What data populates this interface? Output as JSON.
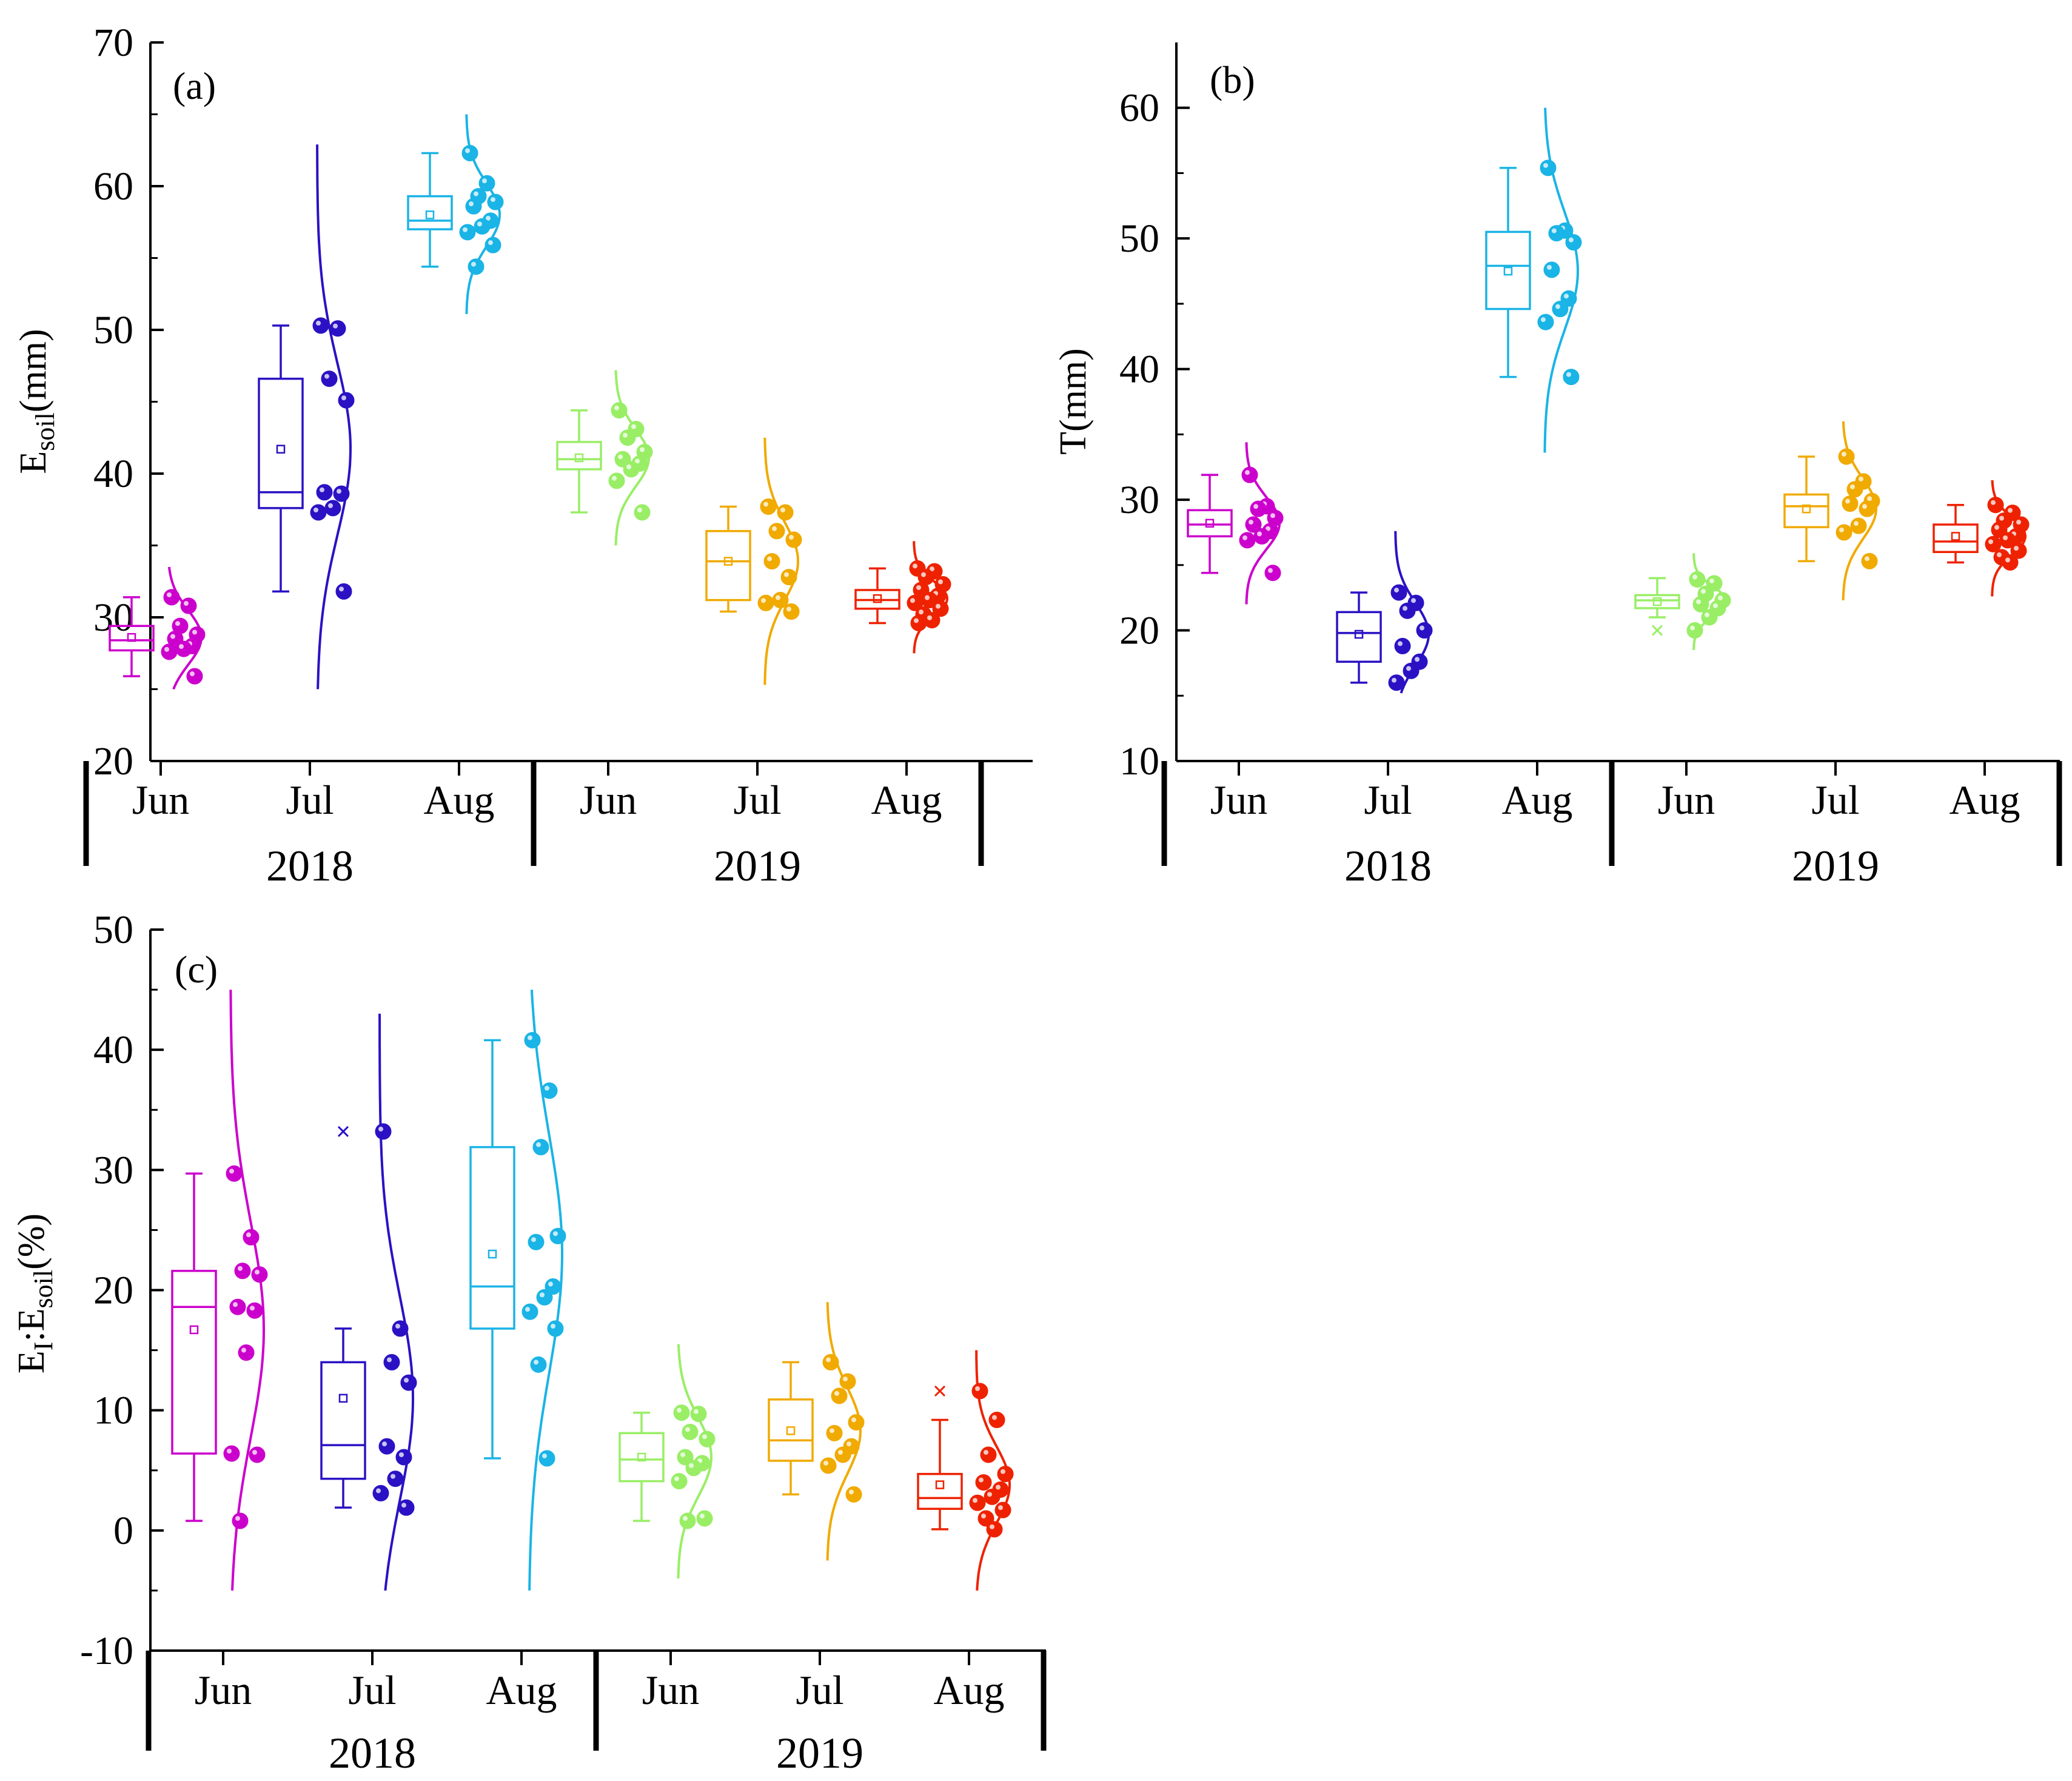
{
  "chart_data": [
    {
      "type": "box-violin",
      "panel_label": "(a)",
      "ylabel": {
        "main": "E",
        "sub": "soil",
        "rest": "(mm)"
      },
      "ylim": [
        20,
        70
      ],
      "yticks": [
        20,
        30,
        40,
        50,
        60,
        70
      ],
      "ytick_labels": [
        "20",
        "30",
        "40",
        "50",
        "60",
        "70"
      ],
      "groups": [
        {
          "month": "Jun",
          "year": "2018",
          "color": "#cc00cc",
          "box": {
            "min": 25.9,
            "q1": 27.7,
            "median": 28.4,
            "q3": 29.4,
            "max": 31.4,
            "mean": 28.6
          },
          "points": [
            31.4,
            30.8,
            29.4,
            28.8,
            28.5,
            28.0,
            27.8,
            27.6,
            25.9
          ],
          "curve": {
            "mu": 28.6,
            "sigma": 1.9,
            "lo": 25.0,
            "hi": 33.5
          }
        },
        {
          "month": "Jul",
          "year": "2018",
          "color": "#2a12c4",
          "box": {
            "min": 31.8,
            "q1": 37.6,
            "median": 38.7,
            "q3": 46.6,
            "max": 50.3,
            "mean": 41.7
          },
          "points": [
            50.3,
            50.1,
            46.6,
            45.1,
            38.7,
            38.6,
            37.6,
            37.3,
            31.8
          ],
          "curve": {
            "mu": 41.7,
            "sigma": 6.0,
            "lo": 25.0,
            "hi": 62.9
          }
        },
        {
          "month": "Aug",
          "year": "2018",
          "color": "#1ab4e6",
          "box": {
            "min": 54.4,
            "q1": 57.0,
            "median": 57.6,
            "q3": 59.3,
            "max": 62.3,
            "mean": 58.0
          },
          "points": [
            62.3,
            60.2,
            59.3,
            58.9,
            58.6,
            57.6,
            57.2,
            56.8,
            55.9,
            54.4
          ],
          "curve": {
            "mu": 58.0,
            "sigma": 2.2,
            "lo": 51.1,
            "hi": 65.0
          }
        },
        {
          "month": "Jun",
          "year": "2019",
          "color": "#99ee66",
          "box": {
            "min": 37.3,
            "q1": 40.3,
            "median": 41.0,
            "q3": 42.2,
            "max": 44.4,
            "mean": 41.1
          },
          "points": [
            44.4,
            43.1,
            42.5,
            41.5,
            41.0,
            40.7,
            40.3,
            39.5,
            37.3
          ],
          "curve": {
            "mu": 41.1,
            "sigma": 2.0,
            "lo": 35.0,
            "hi": 47.2
          }
        },
        {
          "month": "Jul",
          "year": "2019",
          "color": "#f0aa00",
          "box": {
            "min": 30.4,
            "q1": 31.2,
            "median": 33.9,
            "q3": 36.0,
            "max": 37.7,
            "mean": 33.9
          },
          "points": [
            37.7,
            37.3,
            36.0,
            35.4,
            33.9,
            32.8,
            31.2,
            31.0,
            30.4
          ],
          "curve": {
            "mu": 33.9,
            "sigma": 2.7,
            "lo": 25.3,
            "hi": 42.5
          }
        },
        {
          "month": "Aug",
          "year": "2019",
          "color": "#ee2200",
          "box": {
            "min": 29.6,
            "q1": 30.6,
            "median": 31.2,
            "q3": 31.9,
            "max": 33.4,
            "mean": 31.3
          },
          "points": [
            33.4,
            33.2,
            32.8,
            32.3,
            31.9,
            31.5,
            31.2,
            31.0,
            30.6,
            30.2,
            29.8,
            29.6
          ],
          "curve": {
            "mu": 31.3,
            "sigma": 1.2,
            "lo": 27.5,
            "hi": 35.3
          }
        }
      ]
    },
    {
      "type": "box-violin",
      "panel_label": "(b)",
      "ylabel": {
        "main": "T(mm)",
        "sub": "",
        "rest": ""
      },
      "ylim": [
        10,
        65
      ],
      "yticks": [
        10,
        20,
        30,
        40,
        50,
        60
      ],
      "ytick_labels": [
        "10",
        "20",
        "30",
        "40",
        "50",
        "60"
      ],
      "groups": [
        {
          "month": "Jun",
          "year": "2018",
          "color": "#cc00cc",
          "box": {
            "min": 24.4,
            "q1": 27.2,
            "median": 28.1,
            "q3": 29.2,
            "max": 31.9,
            "mean": 28.2
          },
          "points": [
            31.9,
            29.5,
            29.3,
            28.6,
            28.1,
            27.6,
            27.2,
            26.9,
            24.4
          ],
          "curve": {
            "mu": 28.2,
            "sigma": 2.0,
            "lo": 22.0,
            "hi": 34.4
          }
        },
        {
          "month": "Jul",
          "year": "2018",
          "color": "#2a12c4",
          "box": {
            "min": 16.0,
            "q1": 17.6,
            "median": 19.8,
            "q3": 21.4,
            "max": 22.9,
            "mean": 19.7
          },
          "points": [
            22.9,
            22.1,
            21.5,
            20.0,
            18.8,
            17.6,
            16.9,
            16.0
          ],
          "curve": {
            "mu": 19.7,
            "sigma": 2.4,
            "lo": 15.2,
            "hi": 27.6
          }
        },
        {
          "month": "Aug",
          "year": "2018",
          "color": "#1ab4e6",
          "box": {
            "min": 39.4,
            "q1": 44.6,
            "median": 47.9,
            "q3": 50.5,
            "max": 55.4,
            "mean": 47.5
          },
          "points": [
            55.4,
            50.6,
            50.4,
            49.7,
            47.6,
            45.4,
            44.6,
            43.6,
            39.4
          ],
          "curve": {
            "mu": 47.5,
            "sigma": 4.5,
            "lo": 33.6,
            "hi": 60.0
          }
        },
        {
          "month": "Jun",
          "year": "2019",
          "color": "#99ee66",
          "box": {
            "min": 21.0,
            "q1": 21.7,
            "median": 22.3,
            "q3": 22.7,
            "max": 24.0,
            "mean": 22.2
          },
          "points": [
            23.9,
            23.6,
            22.8,
            22.3,
            22.0,
            21.7,
            21.0,
            20.0
          ],
          "curve": {
            "mu": 22.2,
            "sigma": 1.1,
            "lo": 18.5,
            "hi": 25.9
          },
          "outliers": [
            20.0
          ]
        },
        {
          "month": "Jul",
          "year": "2019",
          "color": "#f0aa00",
          "box": {
            "min": 25.3,
            "q1": 27.9,
            "median": 29.5,
            "q3": 30.4,
            "max": 33.3,
            "mean": 29.3
          },
          "points": [
            33.3,
            31.4,
            30.8,
            29.9,
            29.7,
            29.3,
            28.0,
            27.5,
            25.3
          ],
          "curve": {
            "mu": 29.3,
            "sigma": 2.3,
            "lo": 22.3,
            "hi": 36.0
          }
        },
        {
          "month": "Aug",
          "year": "2019",
          "color": "#ee2200",
          "box": {
            "min": 25.2,
            "q1": 26.0,
            "median": 26.8,
            "q3": 28.1,
            "max": 29.6,
            "mean": 27.2
          },
          "points": [
            29.6,
            29.0,
            28.4,
            28.1,
            27.7,
            27.2,
            26.9,
            26.6,
            26.1,
            25.6,
            25.2
          ],
          "curve": {
            "mu": 27.2,
            "sigma": 1.4,
            "lo": 22.6,
            "hi": 31.5
          }
        }
      ]
    },
    {
      "type": "box-violin",
      "panel_label": "(c)",
      "ylabel": {
        "main": "E",
        "sub1": "I",
        "mid": ":E",
        "sub": "soil",
        "rest": "(%)"
      },
      "ylim": [
        -10,
        50
      ],
      "yticks": [
        -10,
        0,
        10,
        20,
        30,
        40,
        50
      ],
      "ytick_labels": [
        "-10",
        "0",
        "10",
        "20",
        "30",
        "40",
        "50"
      ],
      "groups": [
        {
          "month": "Jun",
          "year": "2018",
          "color": "#cc00cc",
          "box": {
            "min": 0.8,
            "q1": 6.4,
            "median": 18.6,
            "q3": 21.6,
            "max": 29.7,
            "mean": 16.7
          },
          "points": [
            29.7,
            24.4,
            21.6,
            21.3,
            18.6,
            18.3,
            14.8,
            6.4,
            6.3,
            0.8
          ],
          "curve": {
            "mu": 16.7,
            "sigma": 9.0,
            "lo": -5.0,
            "hi": 45.0
          }
        },
        {
          "month": "Jul",
          "year": "2018",
          "color": "#2a12c4",
          "box": {
            "min": 1.9,
            "q1": 4.3,
            "median": 7.1,
            "q3": 14.0,
            "max": 16.8,
            "mean": 11.0
          },
          "points": [
            33.2,
            16.8,
            14.0,
            12.3,
            7.0,
            6.1,
            4.3,
            3.1,
            1.9
          ],
          "curve": {
            "mu": 11.0,
            "sigma": 8.5,
            "lo": -5.0,
            "hi": 43.0
          },
          "outliers": [
            33.2
          ]
        },
        {
          "month": "Aug",
          "year": "2018",
          "color": "#1ab4e6",
          "box": {
            "min": 6.0,
            "q1": 16.8,
            "median": 20.3,
            "q3": 31.9,
            "max": 40.8,
            "mean": 23.0
          },
          "points": [
            40.8,
            36.6,
            31.9,
            24.5,
            24.0,
            20.3,
            19.4,
            18.2,
            16.8,
            13.8,
            6.0
          ],
          "curve": {
            "mu": 23.0,
            "sigma": 10.0,
            "lo": -5.0,
            "hi": 45.0
          }
        },
        {
          "month": "Jun",
          "year": "2019",
          "color": "#99ee66",
          "box": {
            "min": 0.8,
            "q1": 4.1,
            "median": 5.9,
            "q3": 8.1,
            "max": 9.8,
            "mean": 6.1
          },
          "points": [
            9.8,
            9.7,
            8.2,
            7.6,
            6.1,
            5.6,
            5.2,
            4.1,
            1.0,
            0.8
          ],
          "curve": {
            "mu": 6.1,
            "sigma": 3.3,
            "lo": -4.0,
            "hi": 15.5
          }
        },
        {
          "month": "Jul",
          "year": "2019",
          "color": "#f0aa00",
          "box": {
            "min": 3.0,
            "q1": 5.8,
            "median": 7.5,
            "q3": 10.9,
            "max": 14.0,
            "mean": 8.3
          },
          "points": [
            14.0,
            12.4,
            11.2,
            9.0,
            8.1,
            7.0,
            6.3,
            5.4,
            3.0
          ],
          "curve": {
            "mu": 8.3,
            "sigma": 3.6,
            "lo": -2.5,
            "hi": 19.0
          }
        },
        {
          "month": "Aug",
          "year": "2019",
          "color": "#ee2200",
          "box": {
            "min": 0.1,
            "q1": 1.8,
            "median": 2.7,
            "q3": 4.7,
            "max": 9.2,
            "mean": 3.8
          },
          "points": [
            11.6,
            9.2,
            6.3,
            4.7,
            4.0,
            3.4,
            2.8,
            2.3,
            1.7,
            1.0,
            0.1
          ],
          "curve": {
            "mu": 3.8,
            "sigma": 3.2,
            "lo": -5.0,
            "hi": 15.0
          },
          "outliers": [
            11.6
          ]
        }
      ]
    }
  ]
}
